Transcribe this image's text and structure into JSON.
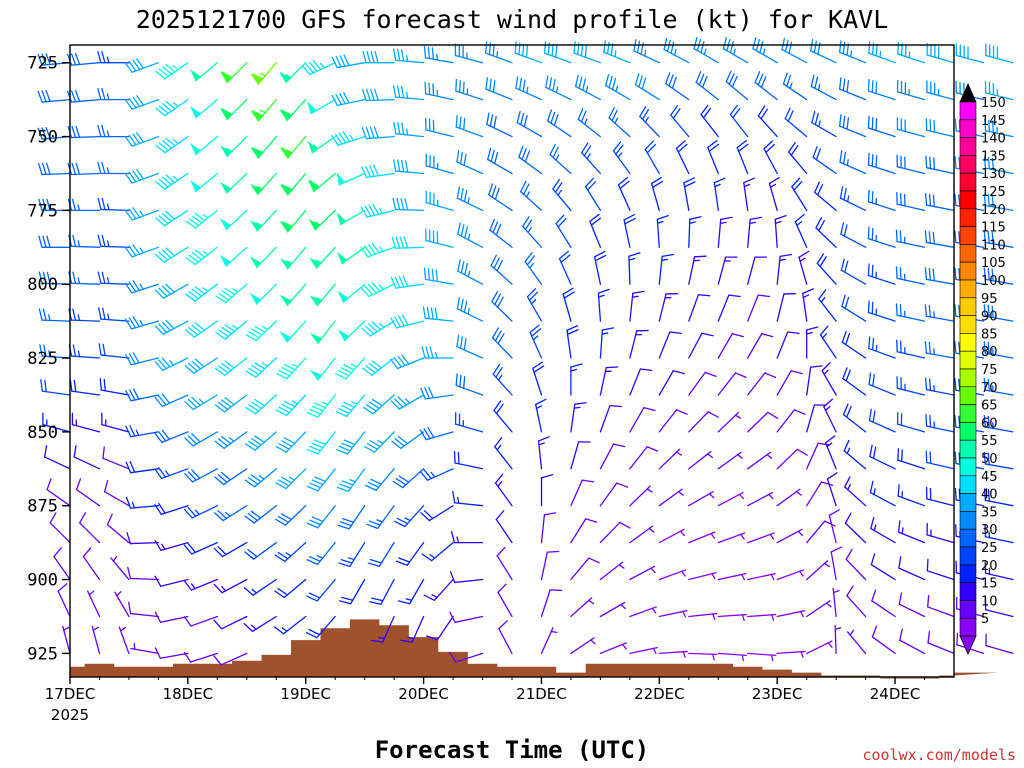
{
  "chart_data": {
    "type": "wind-barb-time-height",
    "title": "2025121700 GFS forecast wind profile (kt) for KAVL",
    "xlabel": "Forecast Time (UTC)",
    "ylabel": "",
    "credit": "coolwx.com/models",
    "x_tick_labels": [
      "17DEC",
      "18DEC",
      "19DEC",
      "20DEC",
      "21DEC",
      "22DEC",
      "23DEC",
      "24DEC"
    ],
    "x_year_label": "2025",
    "x_range_hours": [
      0,
      180
    ],
    "time_step_hours": 6,
    "y_tick_labels": [
      "725",
      "750",
      "775",
      "800",
      "825",
      "850",
      "875",
      "900",
      "925"
    ],
    "y_levels_hpa": [
      725,
      750,
      775,
      800,
      825,
      850,
      875,
      900,
      925
    ],
    "y_range_hpa": [
      719,
      933
    ],
    "pressure_levels": [
      725,
      737.5,
      750,
      762.5,
      775,
      787.5,
      800,
      812.5,
      825,
      837.5,
      850,
      862.5,
      875,
      887.5,
      900,
      912.5,
      925
    ],
    "colorbar": {
      "labels": [
        "150",
        "145",
        "140",
        "135",
        "130",
        "125",
        "120",
        "115",
        "110",
        "105",
        "100",
        "95",
        "90",
        "85",
        "80",
        "75",
        "70",
        "65",
        "60",
        "55",
        "50",
        "45",
        "40",
        "35",
        "30",
        "25",
        "20",
        "15",
        "10",
        "5"
      ],
      "colors": [
        "#ff00ff",
        "#ff00cc",
        "#ff0099",
        "#ff0066",
        "#ff0033",
        "#ff0000",
        "#ff2200",
        "#ff4400",
        "#ff6600",
        "#ff8800",
        "#ffaa00",
        "#ffcc00",
        "#ffdd00",
        "#ffff00",
        "#ddff00",
        "#aaff00",
        "#66ff00",
        "#33ff33",
        "#00ff66",
        "#00ffaa",
        "#00ffdd",
        "#00ddff",
        "#00aaff",
        "#0088ff",
        "#0066ff",
        "#0044ff",
        "#0022ff",
        "#3300ff",
        "#6600ff",
        "#8800ff"
      ],
      "top_arrow_color": "#000000",
      "bottom_arrow_color": "#8800ff"
    },
    "terrain": {
      "color": "#a0522d",
      "surface_pressure_hpa": [
        929.5,
        928.5,
        929.5,
        929.5,
        928.5,
        928.5,
        927.5,
        925.5,
        920.5,
        916.5,
        913.5,
        915.5,
        919.5,
        924.5,
        928.5,
        929.5,
        929.5,
        931.5,
        928.5,
        928.5,
        928.5,
        928.5,
        928.5,
        929.5,
        930.5,
        931.5,
        932.5,
        932.5,
        933.5,
        933.5,
        932.5,
        932.5,
        931.5
      ]
    },
    "barb_speed_kt": [
      [
        30,
        28,
        25,
        38,
        46,
        52,
        62,
        66,
        54,
        44,
        40,
        38,
        36,
        35,
        34,
        35,
        38,
        40,
        38,
        36,
        35,
        34,
        35,
        34,
        33,
        32,
        31,
        34,
        36,
        37,
        38,
        39,
        40
      ],
      [
        30,
        28,
        26,
        38,
        45,
        50,
        58,
        64,
        60,
        50,
        40,
        38,
        36,
        34,
        33,
        32,
        34,
        35,
        34,
        33,
        32,
        30,
        28,
        30,
        28,
        26,
        27,
        30,
        32,
        33,
        34,
        35,
        36
      ],
      [
        30,
        28,
        26,
        38,
        44,
        48,
        55,
        58,
        62,
        55,
        45,
        40,
        36,
        32,
        32,
        30,
        30,
        28,
        27,
        26,
        25,
        22,
        20,
        22,
        20,
        22,
        24,
        28,
        30,
        31,
        32,
        33,
        34
      ],
      [
        30,
        28,
        26,
        38,
        43,
        48,
        52,
        56,
        60,
        58,
        50,
        42,
        38,
        34,
        32,
        30,
        28,
        26,
        24,
        23,
        22,
        20,
        18,
        18,
        18,
        20,
        22,
        26,
        28,
        29,
        30,
        31,
        32
      ],
      [
        30,
        27,
        25,
        37,
        42,
        47,
        50,
        54,
        58,
        56,
        52,
        45,
        40,
        36,
        33,
        30,
        27,
        24,
        21,
        20,
        20,
        18,
        16,
        15,
        15,
        18,
        20,
        24,
        27,
        28,
        29,
        30,
        31
      ],
      [
        29,
        27,
        25,
        36,
        41,
        46,
        48,
        52,
        55,
        54,
        52,
        46,
        42,
        38,
        34,
        30,
        26,
        22,
        20,
        18,
        17,
        16,
        15,
        14,
        14,
        16,
        19,
        22,
        26,
        27,
        28,
        29,
        30
      ],
      [
        28,
        26,
        24,
        35,
        40,
        44,
        46,
        50,
        52,
        54,
        50,
        46,
        42,
        38,
        35,
        30,
        26,
        22,
        18,
        17,
        16,
        14,
        13,
        12,
        13,
        15,
        18,
        22,
        25,
        27,
        28,
        28,
        29
      ],
      [
        27,
        25,
        23,
        34,
        38,
        42,
        44,
        46,
        48,
        52,
        48,
        45,
        42,
        38,
        34,
        30,
        25,
        20,
        17,
        15,
        14,
        12,
        11,
        10,
        12,
        14,
        17,
        21,
        24,
        26,
        27,
        27,
        28
      ],
      [
        26,
        24,
        22,
        32,
        36,
        40,
        42,
        44,
        46,
        50,
        46,
        42,
        40,
        36,
        32,
        28,
        24,
        18,
        16,
        14,
        12,
        11,
        10,
        10,
        11,
        13,
        16,
        20,
        23,
        25,
        26,
        26,
        27
      ],
      [
        22,
        20,
        18,
        28,
        32,
        36,
        38,
        42,
        44,
        46,
        44,
        40,
        36,
        32,
        28,
        24,
        20,
        16,
        14,
        12,
        11,
        10,
        9,
        9,
        10,
        12,
        15,
        19,
        22,
        24,
        25,
        25,
        26
      ],
      [
        16,
        15,
        14,
        24,
        28,
        32,
        34,
        38,
        40,
        42,
        40,
        36,
        32,
        28,
        24,
        20,
        17,
        14,
        12,
        10,
        9,
        8,
        7,
        8,
        9,
        11,
        14,
        18,
        21,
        22,
        23,
        23,
        24
      ],
      [
        12,
        11,
        10,
        20,
        24,
        28,
        30,
        34,
        36,
        38,
        36,
        32,
        28,
        24,
        20,
        17,
        14,
        12,
        10,
        8,
        7,
        7,
        6,
        7,
        8,
        10,
        13,
        16,
        19,
        20,
        21,
        21,
        22
      ],
      [
        10,
        9,
        9,
        16,
        20,
        24,
        26,
        28,
        30,
        32,
        30,
        27,
        24,
        20,
        17,
        14,
        12,
        10,
        9,
        7,
        6,
        6,
        5,
        6,
        7,
        9,
        11,
        14,
        16,
        17,
        18,
        18,
        19
      ],
      [
        9,
        8,
        8,
        12,
        15,
        18,
        20,
        22,
        24,
        26,
        25,
        22,
        20,
        17,
        14,
        12,
        10,
        9,
        8,
        6,
        5,
        5,
        5,
        5,
        6,
        8,
        10,
        12,
        13,
        14,
        15,
        15,
        16
      ],
      [
        8,
        8,
        7,
        10,
        12,
        14,
        15,
        17,
        19,
        21,
        20,
        18,
        16,
        14,
        12,
        10,
        9,
        8,
        7,
        6,
        5,
        5,
        5,
        5,
        5,
        7,
        8,
        10,
        11,
        12,
        12,
        12,
        13
      ],
      [
        8,
        7,
        7,
        8,
        9,
        10,
        12,
        14,
        16,
        18,
        17,
        15,
        14,
        12,
        10,
        9,
        8,
        7,
        6,
        5,
        5,
        5,
        5,
        5,
        5,
        6,
        7,
        8,
        9,
        10,
        10,
        10,
        11
      ],
      [
        7,
        7,
        6,
        7,
        8,
        9,
        10,
        12,
        14,
        16,
        15,
        13,
        12,
        10,
        9,
        8,
        7,
        6,
        5,
        5,
        5,
        5,
        5,
        5,
        5,
        5,
        6,
        7,
        8,
        9,
        9,
        9,
        10
      ]
    ],
    "barb_direction_deg": [
      [
        265,
        265,
        270,
        250,
        235,
        230,
        225,
        220,
        225,
        245,
        260,
        270,
        275,
        280,
        285,
        290,
        290,
        290,
        290,
        292,
        295,
        298,
        300,
        300,
        300,
        298,
        295,
        292,
        290,
        288,
        286,
        285,
        285
      ],
      [
        265,
        265,
        270,
        250,
        235,
        230,
        225,
        220,
        222,
        240,
        258,
        268,
        275,
        282,
        288,
        292,
        294,
        296,
        298,
        300,
        302,
        305,
        308,
        310,
        308,
        304,
        298,
        292,
        288,
        286,
        285,
        284,
        284
      ],
      [
        265,
        268,
        270,
        250,
        235,
        230,
        225,
        220,
        220,
        235,
        252,
        266,
        276,
        284,
        290,
        296,
        300,
        304,
        308,
        312,
        316,
        320,
        322,
        322,
        318,
        310,
        300,
        292,
        288,
        285,
        283,
        282,
        282
      ],
      [
        268,
        268,
        270,
        250,
        236,
        230,
        226,
        222,
        220,
        230,
        246,
        262,
        275,
        286,
        294,
        300,
        306,
        312,
        318,
        324,
        330,
        334,
        338,
        338,
        332,
        320,
        305,
        294,
        288,
        284,
        282,
        281,
        281
      ],
      [
        270,
        270,
        272,
        250,
        237,
        231,
        227,
        223,
        220,
        226,
        240,
        256,
        272,
        286,
        296,
        304,
        312,
        320,
        328,
        336,
        344,
        350,
        352,
        352,
        344,
        328,
        310,
        296,
        288,
        283,
        281,
        280,
        280
      ],
      [
        270,
        272,
        272,
        250,
        238,
        232,
        228,
        224,
        220,
        222,
        234,
        250,
        268,
        284,
        298,
        308,
        318,
        328,
        338,
        348,
        356,
        2,
        5,
        5,
        356,
        336,
        314,
        298,
        288,
        282,
        280,
        280,
        280
      ],
      [
        272,
        272,
        272,
        252,
        240,
        233,
        229,
        225,
        221,
        220,
        230,
        244,
        262,
        280,
        298,
        312,
        324,
        336,
        348,
        358,
        6,
        12,
        15,
        15,
        6,
        344,
        318,
        300,
        288,
        282,
        280,
        280,
        280
      ],
      [
        272,
        272,
        274,
        254,
        242,
        235,
        230,
        226,
        222,
        218,
        226,
        238,
        256,
        276,
        296,
        314,
        330,
        344,
        356,
        6,
        14,
        20,
        22,
        22,
        14,
        352,
        322,
        302,
        288,
        282,
        280,
        280,
        280
      ],
      [
        274,
        274,
        276,
        256,
        244,
        237,
        232,
        227,
        222,
        218,
        222,
        232,
        248,
        270,
        294,
        316,
        336,
        352,
        4,
        14,
        22,
        28,
        30,
        30,
        22,
        0,
        326,
        304,
        290,
        283,
        280,
        280,
        280
      ],
      [
        278,
        278,
        280,
        258,
        246,
        239,
        233,
        228,
        223,
        218,
        220,
        228,
        240,
        262,
        290,
        318,
        342,
        360,
        12,
        22,
        30,
        36,
        38,
        38,
        30,
        8,
        330,
        306,
        292,
        284,
        281,
        280,
        280
      ],
      [
        285,
        285,
        285,
        260,
        248,
        240,
        234,
        229,
        224,
        218,
        218,
        224,
        234,
        254,
        286,
        320,
        348,
        8,
        20,
        30,
        38,
        44,
        46,
        46,
        38,
        16,
        334,
        308,
        294,
        286,
        282,
        280,
        280
      ],
      [
        295,
        295,
        292,
        262,
        250,
        242,
        236,
        230,
        225,
        218,
        216,
        220,
        228,
        246,
        282,
        322,
        354,
        16,
        28,
        38,
        46,
        52,
        54,
        54,
        46,
        24,
        338,
        310,
        296,
        288,
        283,
        281,
        280
      ],
      [
        305,
        305,
        300,
        265,
        252,
        244,
        238,
        232,
        226,
        218,
        214,
        216,
        222,
        238,
        276,
        324,
        360,
        24,
        36,
        46,
        54,
        60,
        62,
        62,
        54,
        32,
        342,
        312,
        298,
        290,
        284,
        282,
        281
      ],
      [
        315,
        315,
        310,
        268,
        254,
        246,
        240,
        234,
        228,
        219,
        212,
        212,
        216,
        230,
        270,
        326,
        6,
        32,
        44,
        54,
        62,
        68,
        70,
        70,
        62,
        40,
        346,
        314,
        300,
        292,
        286,
        283,
        282
      ],
      [
        325,
        325,
        320,
        272,
        256,
        248,
        242,
        236,
        230,
        220,
        210,
        208,
        210,
        222,
        264,
        328,
        12,
        40,
        52,
        62,
        70,
        76,
        78,
        78,
        70,
        48,
        350,
        316,
        302,
        294,
        288,
        284,
        283
      ],
      [
        335,
        335,
        330,
        276,
        258,
        250,
        244,
        238,
        232,
        221,
        208,
        204,
        204,
        214,
        258,
        330,
        18,
        48,
        60,
        70,
        78,
        84,
        86,
        86,
        78,
        56,
        354,
        318,
        304,
        296,
        290,
        286,
        284
      ],
      [
        345,
        345,
        340,
        280,
        260,
        252,
        246,
        240,
        234,
        222,
        206,
        200,
        198,
        206,
        252,
        332,
        24,
        56,
        68,
        78,
        86,
        92,
        94,
        94,
        86,
        64,
        358,
        320,
        306,
        298,
        292,
        288,
        286
      ]
    ]
  }
}
